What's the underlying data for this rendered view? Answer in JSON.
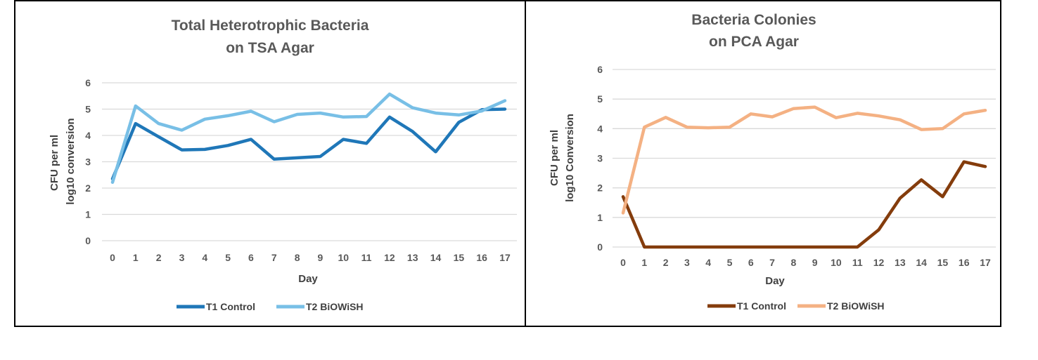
{
  "chart_data": [
    {
      "type": "line",
      "title": [
        "Total Heterotrophic Bacteria",
        "on TSA Agar"
      ],
      "xlabel": "Day",
      "ylabel": [
        "CFU per ml",
        "log10 conversion"
      ],
      "categories": [
        "0",
        "1",
        "2",
        "3",
        "4",
        "5",
        "6",
        "7",
        "8",
        "9",
        "10",
        "11",
        "12",
        "13",
        "14",
        "15",
        "16",
        "17"
      ],
      "ylim": [
        0,
        6
      ],
      "yticks": [
        "0",
        "1",
        "2",
        "3",
        "4",
        "5",
        "6"
      ],
      "grid": true,
      "legend_position": "bottom",
      "series": [
        {
          "name": "T1 Control",
          "color": "#1f77b8",
          "values": [
            2.35,
            4.45,
            3.95,
            3.45,
            3.47,
            3.62,
            3.85,
            3.1,
            3.15,
            3.2,
            3.85,
            3.7,
            4.7,
            4.15,
            3.38,
            4.5,
            4.98,
            5.0
          ]
        },
        {
          "name": "T2 BiOWiSH",
          "color": "#78bfe6",
          "values": [
            2.22,
            5.12,
            4.45,
            4.2,
            4.62,
            4.75,
            4.92,
            4.52,
            4.8,
            4.85,
            4.7,
            4.72,
            5.57,
            5.05,
            4.85,
            4.78,
            4.93,
            5.32
          ]
        }
      ]
    },
    {
      "type": "line",
      "title": [
        "Bacteria Colonies",
        "on PCA Agar"
      ],
      "xlabel": "Day",
      "ylabel": [
        "CFU per ml",
        "log10 Conversion"
      ],
      "categories": [
        "0",
        "1",
        "2",
        "3",
        "4",
        "5",
        "6",
        "7",
        "8",
        "9",
        "10",
        "11",
        "12",
        "13",
        "14",
        "15",
        "16",
        "17"
      ],
      "ylim": [
        0,
        6
      ],
      "yticks": [
        "0",
        "1",
        "2",
        "3",
        "4",
        "5",
        "6"
      ],
      "grid": true,
      "legend_position": "bottom",
      "series": [
        {
          "name": "T1 Control",
          "color": "#843c0c",
          "values": [
            1.7,
            0,
            0,
            0,
            0,
            0,
            0,
            0,
            0,
            0,
            0,
            0,
            0.58,
            1.65,
            2.27,
            1.7,
            2.88,
            2.72
          ]
        },
        {
          "name": "T2 BiOWiSH",
          "color": "#f4b183",
          "values": [
            1.15,
            4.05,
            4.38,
            4.05,
            4.03,
            4.05,
            4.5,
            4.4,
            4.68,
            4.73,
            4.37,
            4.52,
            4.43,
            4.3,
            3.97,
            4.0,
            4.5,
            4.62
          ]
        }
      ]
    }
  ]
}
